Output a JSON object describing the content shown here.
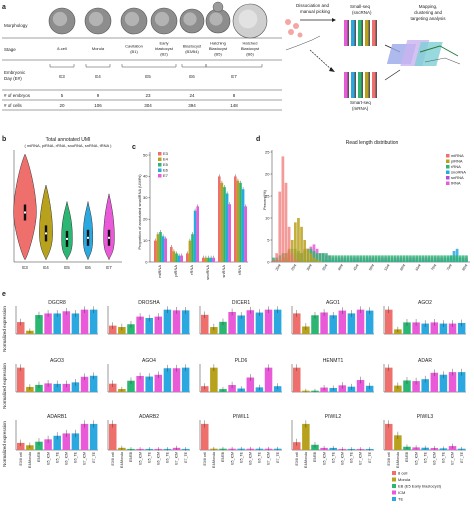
{
  "colors": {
    "E3": "#ef6f6c",
    "E4": "#b8a11c",
    "E5": "#2bb673",
    "E6": "#2aa8df",
    "E7": "#e85ad8",
    "cell8": "#ef6f6c",
    "morula": "#b8a11c",
    "eb": "#2bb673",
    "icm": "#e85ad8",
    "te": "#2aa8df",
    "miRNA": "#ef6f6c",
    "piRNA": "#b8a11c",
    "rRNA": "#2bb673",
    "snoRNA": "#2aa8df",
    "snRNA": "#b04fd6",
    "tRNA": "#e85ad8"
  },
  "panel_a": {
    "label": "a",
    "row_labels": [
      "Morphology",
      "Stage",
      "Embryonic Day (E#)",
      "# of embryos",
      "# of cells"
    ],
    "stages": [
      "8-cell",
      "Morula",
      "Cavitation (B1)",
      "Early blastocyst (B2)",
      "Blastocyst (B3/B4)",
      "Hatching Blastocyst (B5)",
      "Hatched Blastocyst (B6)"
    ],
    "stage_lines": [
      [
        "8-cell"
      ],
      [
        "Morula"
      ],
      [
        "Cavitation",
        "(B1)"
      ],
      [
        "Early",
        "blastocyst",
        "(B2)"
      ],
      [
        "Blastocyst",
        "(B3/B4)"
      ],
      [
        "Hatching",
        "Blastocyst",
        "(B5)"
      ],
      [
        "Hatched",
        "Blastocyst",
        "(B6)"
      ]
    ],
    "days": [
      "E3",
      "E4",
      "E5",
      "E6",
      "E7"
    ],
    "embryos": [
      "5",
      "9",
      "23",
      "24",
      "8"
    ],
    "cells": [
      "20",
      "106",
      "304",
      "394",
      "148"
    ],
    "workflow": {
      "step1": [
        "Dissociation and",
        "manual picking"
      ],
      "small_seq": [
        "Small-seq",
        "(sncRNA)"
      ],
      "smart_seq": [
        "Smart-seq",
        "(mRNA)"
      ],
      "step3": [
        "Mapping,",
        "clustering and",
        "targeting analysis"
      ]
    }
  },
  "panel_b": {
    "label": "b",
    "title": "Total annotated UMI",
    "subtitle": "( miRNA, piRNA, rRNA, snoRNA, snRNA, tRNA )",
    "groups": [
      "E3",
      "E4",
      "E5",
      "E6",
      "E7"
    ],
    "widths": [
      0.95,
      0.55,
      0.45,
      0.4,
      0.45
    ],
    "medians": [
      0.45,
      0.26,
      0.21,
      0.22,
      0.22
    ],
    "tops": [
      0.98,
      0.7,
      0.55,
      0.55,
      0.62
    ],
    "bottoms": [
      0.02,
      0.02,
      0.02,
      0.02,
      0.02
    ]
  },
  "panel_c": {
    "label": "c",
    "ylabel": "Proportion of annotated smallRNA (UMI%)",
    "yticks": [
      "0",
      "10",
      "20",
      "30",
      "40",
      "50"
    ],
    "categories": [
      "miRNA",
      "piRNA",
      "rRNA",
      "snoRNA",
      "snRNA",
      "tRNA"
    ],
    "legend": [
      "E3",
      "E4",
      "E5",
      "E6",
      "E7"
    ],
    "ylim": [
      0,
      50
    ],
    "series": [
      {
        "name": "E3",
        "values": [
          10,
          7,
          4,
          2,
          40,
          40
        ]
      },
      {
        "name": "E4",
        "values": [
          13,
          5,
          10,
          2,
          37,
          38
        ]
      },
      {
        "name": "E5",
        "values": [
          14,
          4,
          13,
          2,
          35,
          37
        ]
      },
      {
        "name": "E6",
        "values": [
          12,
          3,
          24,
          2,
          32,
          34
        ]
      },
      {
        "name": "E7",
        "values": [
          11,
          3,
          26,
          2,
          27,
          26
        ]
      }
    ]
  },
  "panel_d": {
    "label": "d",
    "title": "Read length distribution",
    "ylabel": "Percent(%)",
    "yticks": [
      "0",
      "5",
      "10",
      "15",
      "20",
      "25"
    ],
    "xticks": [
      "20nt",
      "25nt",
      "30nt",
      "35nt",
      "40nt",
      "45nt",
      "50nt",
      "55nt",
      "60nt",
      "65nt",
      "70nt",
      "75nt",
      "80nt"
    ],
    "legend": [
      "miRNA",
      "piRNA",
      "rRNA",
      "snoRNA",
      "snRNA",
      "tRNA"
    ],
    "ylim": [
      0,
      25
    ],
    "x_start": 18,
    "x_end": 80,
    "series": [
      {
        "name": "miRNA",
        "values": [
          0.5,
          2,
          16,
          24,
          18,
          8,
          2,
          0.5,
          0.2,
          0,
          0,
          0,
          0,
          0,
          0,
          0,
          0,
          0,
          0,
          0,
          0,
          0,
          0,
          0,
          0,
          0,
          0,
          0,
          0,
          0,
          0,
          0,
          0,
          0,
          0,
          0,
          0,
          0,
          0,
          0,
          0,
          0,
          0,
          0,
          0,
          0,
          0,
          0,
          0,
          0,
          0,
          0,
          0,
          0,
          0,
          0,
          0,
          0,
          0,
          0,
          0,
          0,
          0
        ]
      },
      {
        "name": "piRNA",
        "values": [
          0,
          0,
          0.5,
          1,
          2,
          3,
          5,
          9,
          10,
          8,
          5,
          3,
          2,
          1,
          0.5,
          0.3,
          0,
          0,
          0,
          0,
          0,
          0,
          0,
          0,
          0,
          0,
          0,
          0,
          0,
          0,
          0,
          0,
          0,
          0,
          0,
          0,
          0,
          0,
          0,
          0,
          0,
          0,
          0,
          0,
          0,
          0,
          0,
          0,
          0,
          0,
          0,
          0,
          0,
          0,
          0,
          0,
          0,
          0,
          0,
          0,
          0,
          0,
          0
        ]
      },
      {
        "name": "rRNA",
        "values": [
          1,
          1,
          1.5,
          2,
          2,
          2.5,
          3,
          3,
          2.5,
          2,
          2.5,
          3,
          3,
          2.5,
          2,
          2,
          2,
          2,
          1.5,
          1.5,
          1.5,
          1.5,
          1.5,
          1.5,
          1.5,
          1.5,
          1.5,
          1.5,
          1.5,
          1.5,
          1.5,
          1.5,
          1.5,
          1.5,
          1.5,
          1.5,
          1.5,
          1.5,
          1.5,
          1.5,
          1.5,
          1.5,
          1.5,
          1.5,
          1.5,
          1.5,
          1.5,
          1.5,
          1.5,
          1.5,
          1.5,
          1.5,
          1.5,
          1.5,
          1.5,
          1.5,
          1.5,
          1.5,
          1.5,
          1.5,
          1.5,
          1.5,
          1.5
        ]
      },
      {
        "name": "snoRNA",
        "values": [
          0.5,
          0.5,
          0.5,
          0.5,
          0.5,
          0.5,
          0.5,
          0.5,
          0.5,
          0.5,
          0.5,
          0.5,
          0.5,
          0.5,
          0.5,
          0.5,
          0.5,
          0.5,
          0.5,
          0.5,
          0.5,
          0.5,
          0.5,
          0.5,
          0.5,
          0.5,
          0.5,
          0.5,
          0.5,
          0.5,
          0.5,
          0.5,
          0.5,
          0.5,
          0.5,
          0.5,
          0.5,
          0.5,
          0.5,
          0.5,
          0.5,
          0.5,
          0.5,
          0.5,
          0.5,
          0.5,
          0.5,
          0.5,
          0.5,
          0.5,
          0.5,
          0.5,
          0.5,
          0.5,
          0.5,
          0.5,
          1,
          1.5,
          2.5,
          3,
          1,
          0.5,
          0.5
        ]
      },
      {
        "name": "snRNA",
        "values": [
          0,
          0,
          0,
          0,
          0,
          0,
          0,
          0,
          0,
          0,
          0,
          0,
          0,
          0,
          0,
          0,
          0,
          0,
          0,
          0,
          0,
          0,
          0,
          0,
          0,
          0,
          0,
          0,
          0,
          0,
          0,
          0,
          0,
          0,
          0,
          0,
          0,
          0,
          0,
          0,
          0,
          0,
          0,
          0,
          0,
          0,
          0,
          0,
          0,
          0,
          0,
          0,
          0,
          0,
          0,
          0,
          0,
          0,
          0,
          0,
          0,
          0,
          0
        ]
      },
      {
        "name": "tRNA",
        "values": [
          0,
          0,
          0.5,
          1,
          1,
          1,
          1.5,
          2,
          2,
          2,
          3,
          3,
          3.5,
          4,
          3,
          2,
          2,
          1.5,
          1.5,
          1,
          1,
          1,
          1,
          1,
          1,
          1,
          1,
          1,
          1,
          1,
          1,
          1,
          1,
          1,
          1,
          1,
          1,
          1,
          1,
          1,
          1,
          1,
          1,
          1,
          1,
          1,
          1,
          1,
          1,
          1,
          1,
          1,
          1,
          1,
          1,
          1,
          1,
          1,
          1,
          1,
          1,
          1,
          1
        ]
      }
    ]
  },
  "panel_e": {
    "label": "e",
    "ylabel": "Normalized expression",
    "categories": [
      "E3/8 cell",
      "E4/Morula",
      "E5/EB",
      "E5_ICM",
      "E5_TE",
      "E6_ICM",
      "E6_TE",
      "E7_ICM",
      "E7_TE"
    ],
    "cat_colors": [
      "cell8",
      "morula",
      "eb",
      "icm",
      "te",
      "icm",
      "te",
      "icm",
      "te"
    ],
    "legend": [
      "8 cell",
      "Morula",
      "EB (E5 Early blastocyst)",
      "ICM",
      "TE"
    ],
    "legend_keys": [
      "cell8",
      "morula",
      "eb",
      "icm",
      "te"
    ],
    "genes": [
      {
        "name": "DGCR8",
        "values": [
          0.22,
          0.06,
          0.35,
          0.38,
          0.38,
          0.42,
          0.38,
          0.45,
          0.45
        ]
      },
      {
        "name": "DROSHA",
        "values": [
          0.12,
          0.1,
          0.14,
          0.25,
          0.23,
          0.25,
          0.35,
          0.34,
          0.34
        ]
      },
      {
        "name": "DICER1",
        "values": [
          0.33,
          0.12,
          0.21,
          0.38,
          0.32,
          0.41,
          0.37,
          0.42,
          0.42
        ]
      },
      {
        "name": "AGO1",
        "values": [
          0.22,
          0.08,
          0.2,
          0.23,
          0.2,
          0.25,
          0.22,
          0.26,
          0.25
        ]
      },
      {
        "name": "AGO2",
        "values": [
          0.42,
          0.08,
          0.2,
          0.2,
          0.18,
          0.2,
          0.18,
          0.18,
          0.19
        ]
      },
      {
        "name": "AGO3",
        "values": [
          0.48,
          0.1,
          0.14,
          0.17,
          0.16,
          0.16,
          0.19,
          0.3,
          0.32
        ]
      },
      {
        "name": "AGO4",
        "values": [
          0.14,
          0.05,
          0.19,
          0.27,
          0.26,
          0.29,
          0.4,
          0.4,
          0.41
        ]
      },
      {
        "name": "PLD6",
        "values": [
          0.1,
          0.42,
          0.05,
          0.12,
          0.06,
          0.25,
          0.08,
          0.42,
          0.1
        ]
      },
      {
        "name": "HENMT1",
        "values": [
          0.55,
          0.03,
          0.03,
          0.1,
          0.09,
          0.15,
          0.12,
          0.27,
          0.14
        ]
      },
      {
        "name": "ADAR",
        "values": [
          0.38,
          0.1,
          0.18,
          0.17,
          0.2,
          0.3,
          0.27,
          0.31,
          0.31
        ]
      },
      {
        "name": "ADARB1",
        "values": [
          0.06,
          0.04,
          0.07,
          0.09,
          0.12,
          0.14,
          0.14,
          0.22,
          0.22
        ]
      },
      {
        "name": "ADARB2",
        "values": [
          0.12,
          0.01,
          0.005,
          0.005,
          0.005,
          0.005,
          0.005,
          0.01,
          0.005
        ]
      },
      {
        "name": "PIWIL1",
        "values": [
          0.1,
          0.005,
          0.005,
          0.005,
          0.005,
          0.005,
          0.005,
          0.005,
          0.005
        ]
      },
      {
        "name": "PIWIL2",
        "values": [
          0.15,
          0.5,
          0.1,
          0.04,
          0.04,
          0.02,
          0.02,
          0.02,
          0.02
        ]
      },
      {
        "name": "PIWIL3",
        "values": [
          0.8,
          0.45,
          0.1,
          0.08,
          0.07,
          0.06,
          0.05,
          0.12,
          0.04
        ]
      }
    ]
  }
}
